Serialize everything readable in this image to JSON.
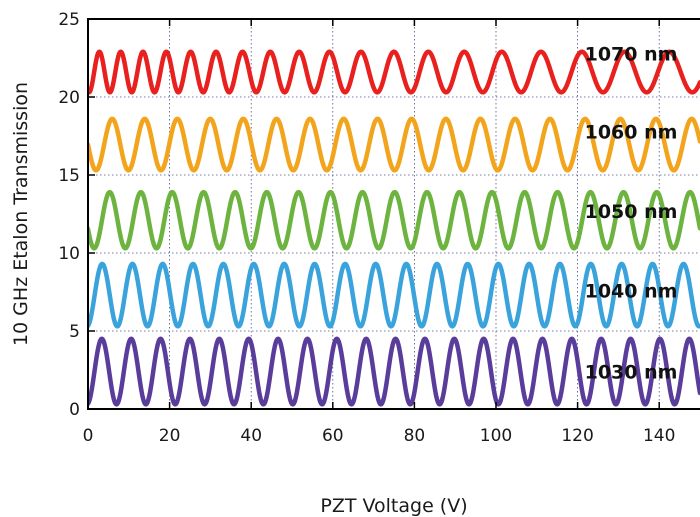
{
  "chart_data": {
    "type": "line",
    "title": "",
    "xlabel": "PZT Voltage (V)",
    "ylabel": "10 GHz Etalon Transmission",
    "xlim": [
      0,
      150
    ],
    "ylim": [
      0,
      25
    ],
    "xticks": [
      0,
      20,
      40,
      60,
      80,
      100,
      120,
      140
    ],
    "yticks": [
      0,
      5,
      10,
      15,
      20,
      25
    ],
    "grid": true,
    "series": [
      {
        "name": "1030 nm",
        "color": "#5a3d9a",
        "offset": 0.3,
        "amplitude": 4.2,
        "periods": [
          7.2,
          7.2
        ],
        "phase": 0.78,
        "label_pos": [
          120,
          2.4
        ]
      },
      {
        "name": "1040 nm",
        "color": "#3ba3dc",
        "offset": 5.3,
        "amplitude": 4.0,
        "periods": [
          7.4,
          7.6
        ],
        "phase": 0.78,
        "label_pos": [
          120,
          7.6
        ]
      },
      {
        "name": "1050 nm",
        "color": "#6db33f",
        "offset": 10.3,
        "amplitude": 3.6,
        "periods": [
          7.6,
          8.2
        ],
        "phase": 0.55,
        "label_pos": [
          120,
          12.7
        ]
      },
      {
        "name": "1060 nm",
        "color": "#f2a41c",
        "offset": 15.3,
        "amplitude": 3.3,
        "periods": [
          7.9,
          8.8
        ],
        "phase": 0.5,
        "label_pos": [
          120,
          17.8
        ]
      },
      {
        "name": "1070 nm",
        "color": "#e8201e",
        "offset": 20.3,
        "amplitude": 2.6,
        "periods": [
          5.0,
          11.5
        ],
        "phase": 0.7,
        "label_pos": [
          120,
          22.8
        ]
      }
    ]
  }
}
